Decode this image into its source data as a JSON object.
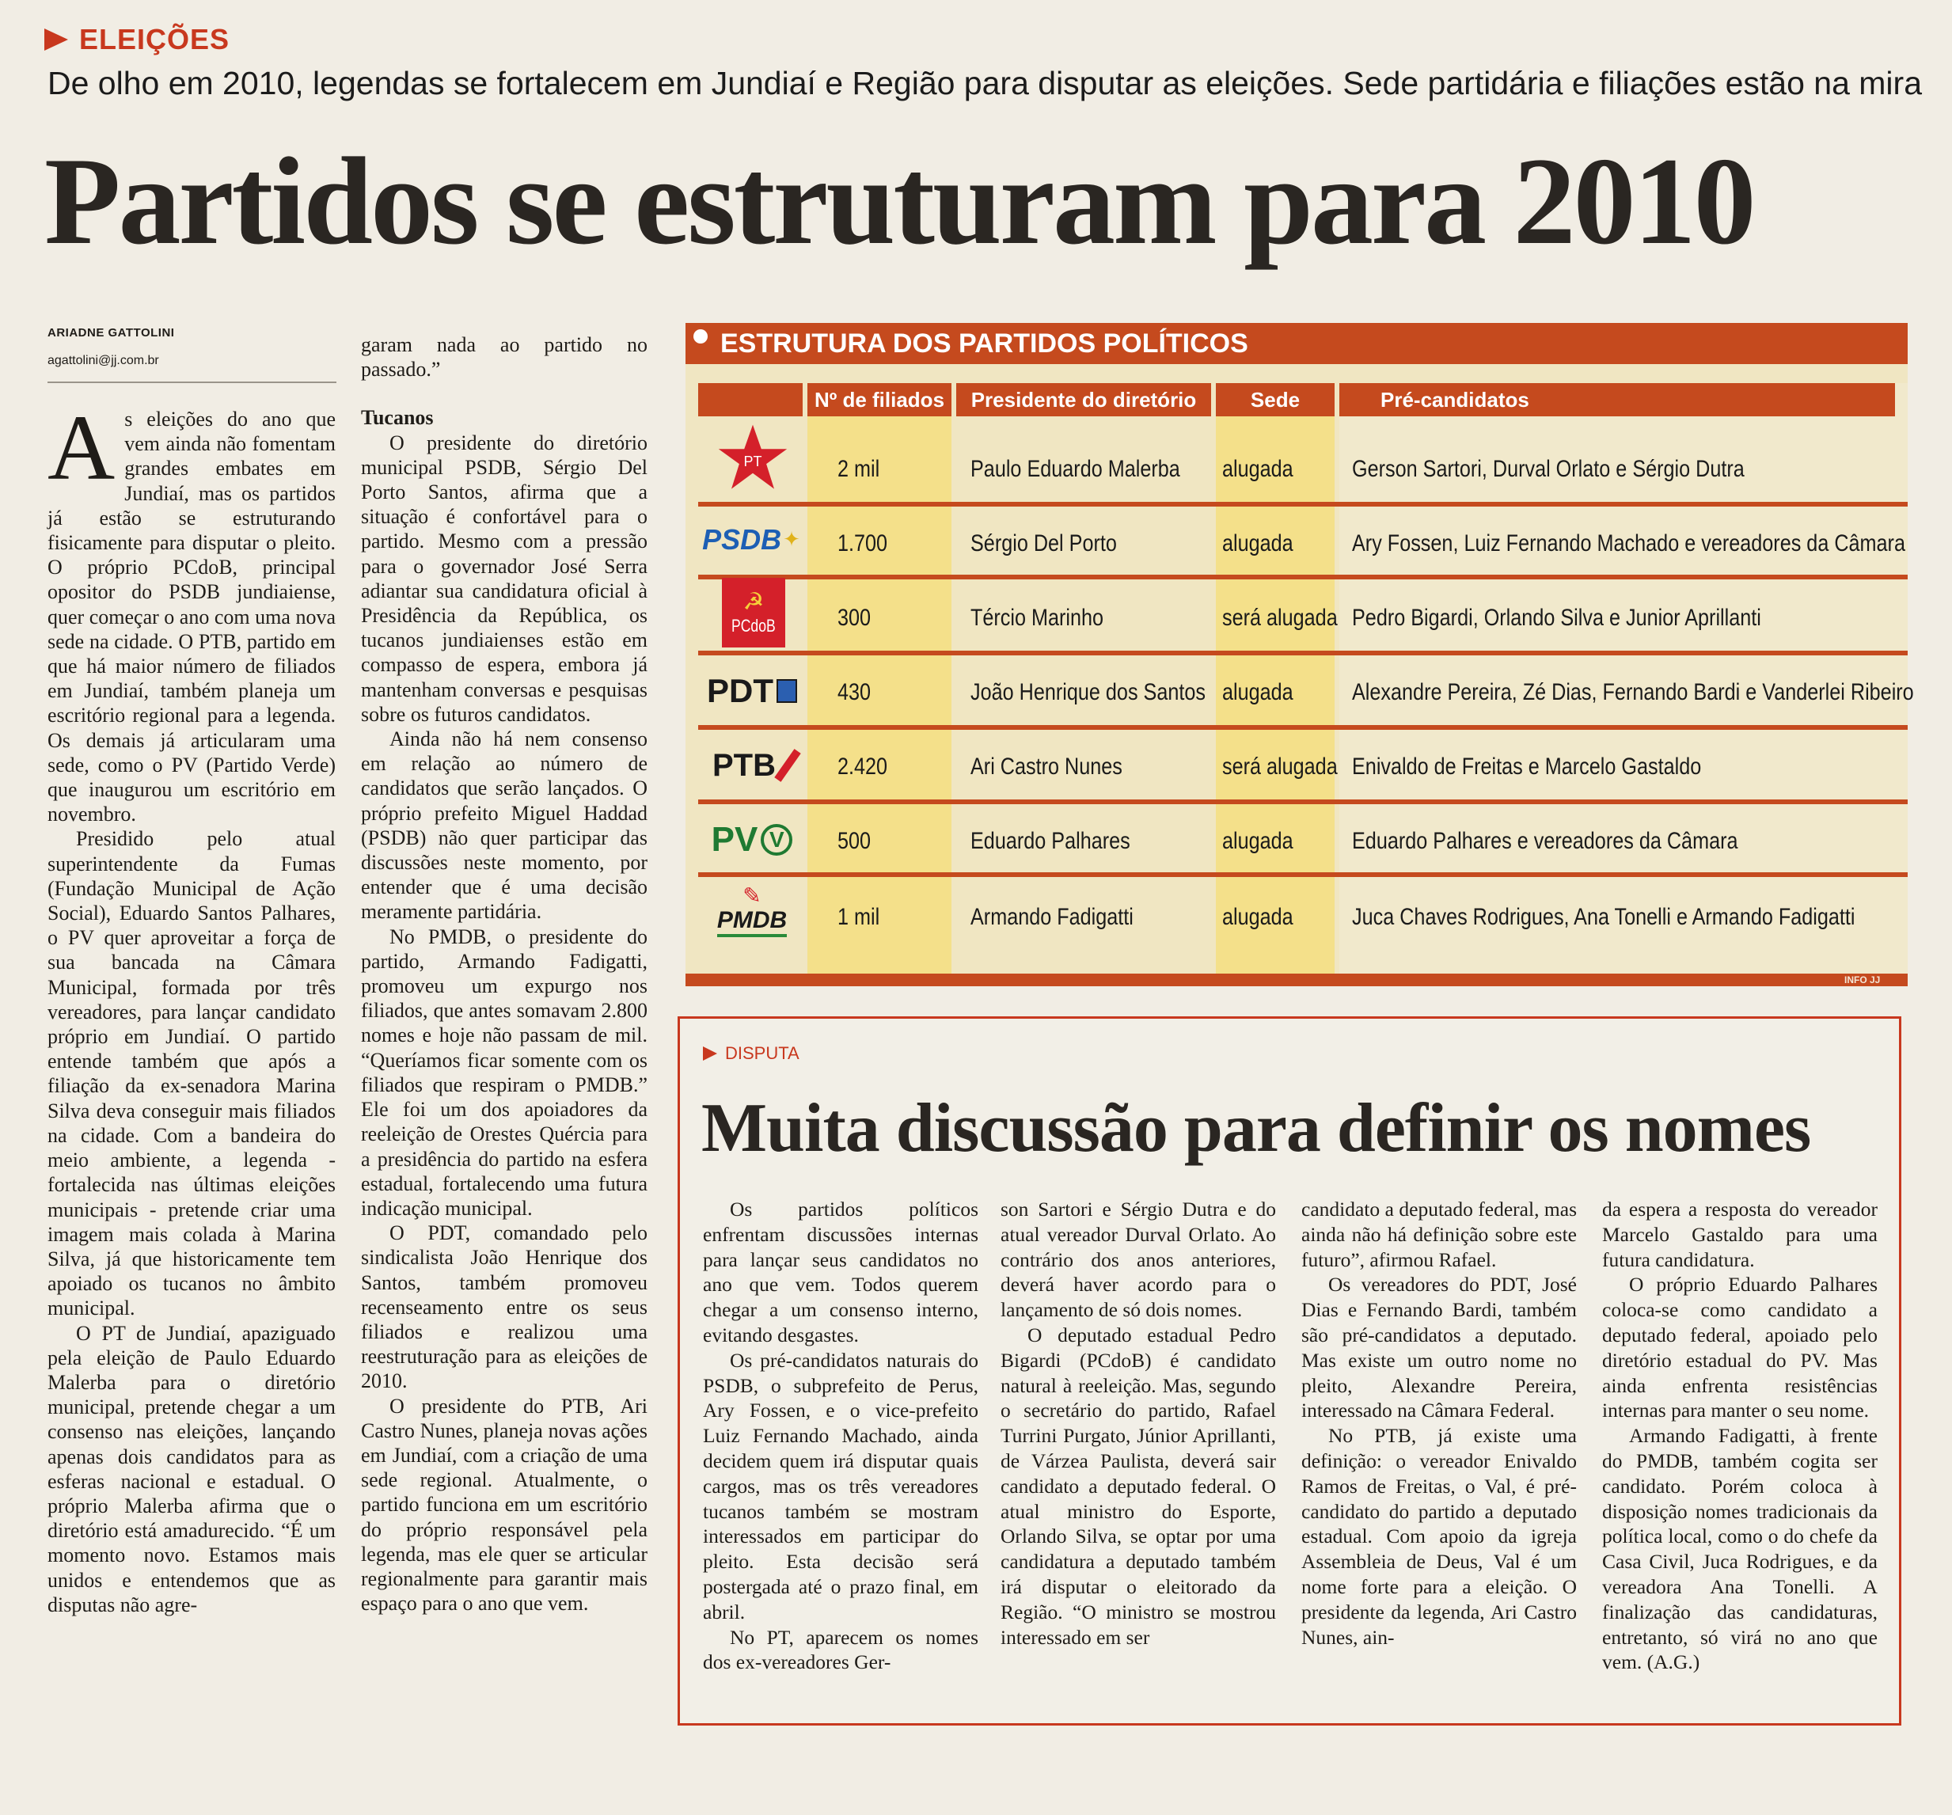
{
  "section": "ELEIÇÕES",
  "subtitle": "De olho em 2010, legendas se fortalecem em Jundiaí e Região para disputar as eleições. Sede partidária e filiações estão na mira",
  "headline": "Partidos se estruturam para 2010",
  "byline": {
    "name": "ARIADNE GATTOLINI",
    "email": "agattolini@jj.com.br"
  },
  "col1": {
    "dropcap": "A",
    "p1": "s eleições do ano que vem ainda não fomentam grandes embates em Jundiaí, mas os partidos já estão se estruturando fisicamente para disputar o pleito. O próprio PCdoB, principal opositor do PSDB jundiaiense, quer começar o ano com uma nova sede na cidade. O PTB, partido em que há maior número de filiados em Jundiaí, também planeja um escritório regional para a legenda. Os demais já articularam uma sede, como o PV (Partido Verde) que inaugurou um escritório em novembro.",
    "p2": "Presidido pelo atual superintendente da Fumas (Fundação Municipal de Ação Social), Eduardo Santos Palhares, o PV quer aproveitar a força de sua bancada na Câmara Municipal, formada por três vereadores, para lançar candidato próprio em Jundiaí. O partido entende também que após a filiação da ex-senadora Marina Silva deva conseguir mais filiados na cidade. Com a bandeira do meio ambiente, a legenda - fortalecida nas últimas eleições municipais - pretende criar uma imagem mais colada à Marina Silva, já que historicamente tem apoiado os tucanos no âmbito municipal.",
    "p3": "O PT de Jundiaí, apaziguado pela eleição de Paulo Eduardo Malerba para o diretório municipal, pretende chegar a um consenso nas eleições, lançando apenas dois candidatos para as esferas nacional e estadual. O próprio Malerba afirma que o diretório está amadurecido. “É um momento novo. Estamos mais unidos e entendemos que as disputas não agre-"
  },
  "col2": {
    "lead": "garam nada ao partido no passado.”",
    "subhead": "Tucanos",
    "p1": "O presidente do diretório municipal PSDB, Sérgio Del Porto Santos, afirma que a situação é confortável para o partido. Mesmo com a pressão para o governador José Serra adiantar sua candidatura oficial à Presidência da República, os tucanos jundiaienses estão em compasso de espera, embora já mantenham conversas e pesquisas sobre os futuros candidatos.",
    "p2": "Ainda não há nem consenso em relação ao número de candidatos que serão lançados. O próprio prefeito Miguel Haddad (PSDB) não quer participar das discussões neste momento, por entender que é uma decisão meramente partidária.",
    "p3": "No PMDB, o presidente do partido, Armando Fadigatti, promoveu um expurgo nos filiados, que antes somavam 2.800 nomes e hoje não passam de mil. “Queríamos ficar somente com os filiados que respiram o PMDB.” Ele foi um dos apoiadores da reeleição de Orestes Quércia para a presidência do partido na esfera estadual, fortalecendo uma futura indicação municipal.",
    "p4": "O PDT, comandado pelo sindicalista João Henrique dos Santos, também promoveu recenseamento entre os seus filiados e realizou uma reestruturação para as eleições de 2010.",
    "p5": "O presidente do PTB, Ari Castro Nunes, planeja novas ações em Jundiaí, com a criação de uma sede regional. Atualmente, o partido funciona em um escritório do próprio responsável pela legenda, mas ele quer se articular regionalmente para garantir mais espaço para o ano que vem."
  },
  "table": {
    "title": "ESTRUTURA DOS PARTIDOS POLÍTICOS",
    "headers": [
      "Nº de filiados",
      "Presidente do diretório",
      "Sede",
      "Pré-candidatos"
    ],
    "credit": "INFO JJ",
    "rows": [
      {
        "logo": "PT",
        "filiados": "2 mil",
        "presidente": "Paulo Eduardo Malerba",
        "sede": "alugada",
        "candidatos": "Gerson Sartori, Durval Orlato e Sérgio Dutra"
      },
      {
        "logo": "PSDB",
        "filiados": "1.700",
        "presidente": "Sérgio Del Porto",
        "sede": "alugada",
        "candidatos": "Ary Fossen, Luiz Fernando Machado e vereadores da Câmara"
      },
      {
        "logo": "PCdoB",
        "filiados": "300",
        "presidente": "Tércio Marinho",
        "sede": "será alugada",
        "candidatos": "Pedro Bigardi, Orlando Silva e Junior Aprillanti"
      },
      {
        "logo": "PDT",
        "filiados": "430",
        "presidente": "João Henrique dos Santos",
        "sede": "alugada",
        "candidatos": "Alexandre Pereira, Zé Dias, Fernando Bardi e Vanderlei Ribeiro"
      },
      {
        "logo": "PTB",
        "filiados": "2.420",
        "presidente": "Ari Castro Nunes",
        "sede": "será alugada",
        "candidatos": "Enivaldo de Freitas e Marcelo Gastaldo"
      },
      {
        "logo": "PV",
        "filiados": "500",
        "presidente": "Eduardo Palhares",
        "sede": "alugada",
        "candidatos": "Eduardo Palhares e vereadores da Câmara"
      },
      {
        "logo": "PMDB",
        "filiados": "1 mil",
        "presidente": "Armando Fadigatti",
        "sede": "alugada",
        "candidatos": "Juca Chaves Rodrigues, Ana Tonelli e Armando Fadigatti"
      }
    ]
  },
  "sidebar": {
    "tag": "DISPUTA",
    "headline": "Muita discussão para definir os nomes",
    "c1": [
      "Os partidos políticos enfrentam discussões internas para lançar seus candidatos no ano que vem. Todos querem chegar a um consenso interno, evitando desgastes.",
      "Os pré-candidatos naturais do PSDB, o subprefeito de Perus, Ary Fossen, e o vice-prefeito Luiz Fernando Machado, ainda decidem quem irá disputar quais cargos, mas os três vereadores tucanos também se mostram interessados em participar do pleito. Esta decisão será postergada até o prazo final, em abril.",
      "No PT, aparecem os nomes dos ex-vereadores Ger-"
    ],
    "c2": [
      "son Sartori e Sérgio Dutra e do atual vereador Durval Orlato. Ao contrário dos anos anteriores, deverá haver acordo para o lançamento de só dois nomes.",
      "O deputado estadual Pedro Bigardi (PCdoB) é candidato natural à reeleição. Mas, segundo o secretário do partido, Rafael Turrini Purgato, Júnior Aprillanti, de Várzea Paulista, deverá sair candidato a deputado federal. O atual ministro do Esporte, Orlando Silva, se optar por uma candidatura a deputado também irá disputar o eleitorado da Região. “O ministro se mostrou interessado em ser"
    ],
    "c3": [
      "candidato a deputado federal, mas ainda não há definição sobre este futuro”, afirmou Rafael.",
      "Os vereadores do PDT, José Dias e Fernando Bardi, também são pré-candidatos a deputado. Mas existe um outro nome no pleito, Alexandre Pereira, interessado na Câmara Federal.",
      "No PTB, já existe uma definição: o vereador Enivaldo Ramos de Freitas, o Val, é pré-candidato do partido a deputado estadual. Com apoio da igreja Assembleia de Deus, Val é um nome forte para a eleição. O presidente da legenda, Ari Castro Nunes, ain-"
    ],
    "c4": [
      "da espera a resposta do vereador Marcelo Gastaldo para uma futura candidatura.",
      "O próprio Eduardo Palhares coloca-se como candidato a deputado federal, apoiado pelo diretório estadual do PV. Mas ainda enfrenta resistências internas para manter o seu nome.",
      "Armando Fadigatti, à frente do PMDB, também cogita ser candidato. Porém coloca à disposição nomes tradicionais da política local, como o do chefe da Casa Civil, Juca Rodrigues, e da vereadora Ana Tonelli. A finalização das candidaturas, entretanto, só virá no ano que vem. (A.G.)"
    ]
  },
  "colors": {
    "accent": "#c54a1e",
    "table_bg": "#f0e6c2",
    "highlight": "#f4e08a",
    "paper": "#f1ede4"
  }
}
